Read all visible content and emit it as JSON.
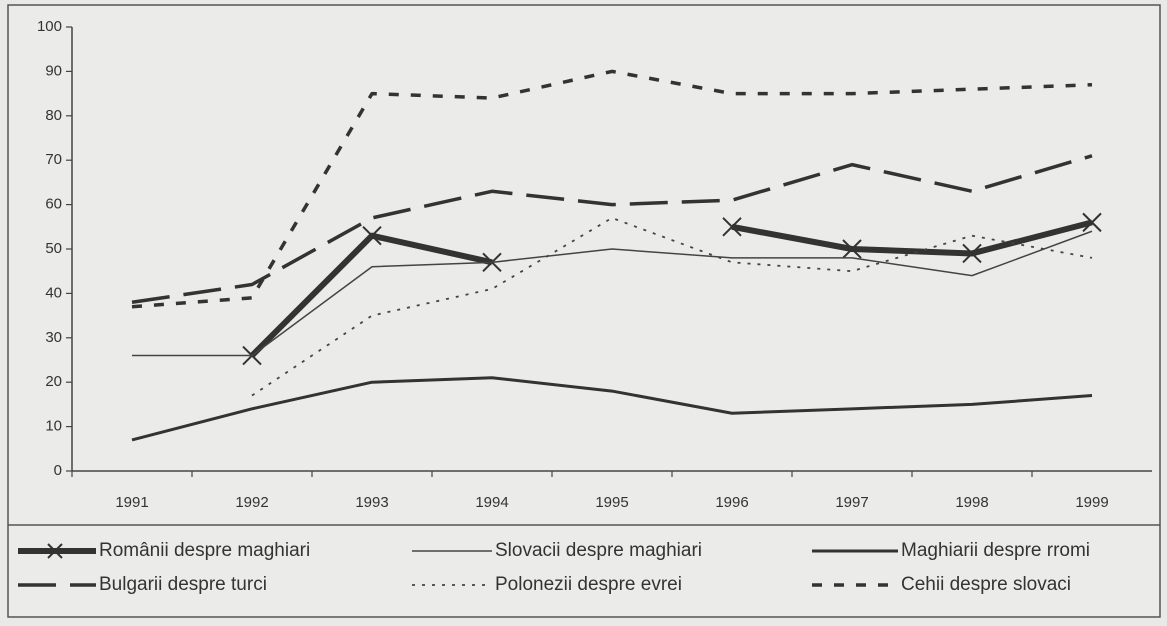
{
  "chart_data": {
    "type": "line",
    "categories": [
      "1991",
      "1992",
      "1993",
      "1994",
      "1995",
      "1996",
      "1997",
      "1998",
      "1999"
    ],
    "ylim": [
      0,
      100
    ],
    "yticks": [
      0,
      10,
      20,
      30,
      40,
      50,
      60,
      70,
      80,
      90,
      100
    ],
    "series": [
      {
        "name": "Românii despre maghiari",
        "color": "#333333",
        "line_style": "solid",
        "line_width": 6,
        "marker": "x",
        "values": [
          null,
          26,
          53,
          47,
          null,
          55,
          50,
          49,
          56
        ]
      },
      {
        "name": "Slovacii despre maghiari",
        "color": "#444444",
        "line_style": "solid",
        "line_width": 1.5,
        "values": [
          26,
          26,
          46,
          47,
          50,
          48,
          48,
          44,
          54
        ]
      },
      {
        "name": "Maghiarii despre rromi",
        "color": "#333333",
        "line_style": "solid",
        "line_width": 3,
        "values": [
          7,
          14,
          20,
          21,
          18,
          13,
          14,
          15,
          17
        ]
      },
      {
        "name": "Bulgarii despre turci",
        "color": "#333333",
        "line_style": "longdash",
        "line_width": 3.5,
        "values": [
          38,
          42,
          57,
          63,
          60,
          61,
          69,
          63,
          71
        ]
      },
      {
        "name": "Polonezii despre evrei",
        "color": "#444444",
        "line_style": "dotted",
        "line_width": 1.8,
        "values": [
          null,
          17,
          35,
          41,
          57,
          47,
          45,
          53,
          48
        ]
      },
      {
        "name": "Cehii despre slovaci",
        "color": "#333333",
        "line_style": "shortdash",
        "line_width": 3.5,
        "values": [
          37,
          39,
          85,
          84,
          90,
          85,
          85,
          86,
          87
        ]
      }
    ],
    "legend": "bottom"
  }
}
